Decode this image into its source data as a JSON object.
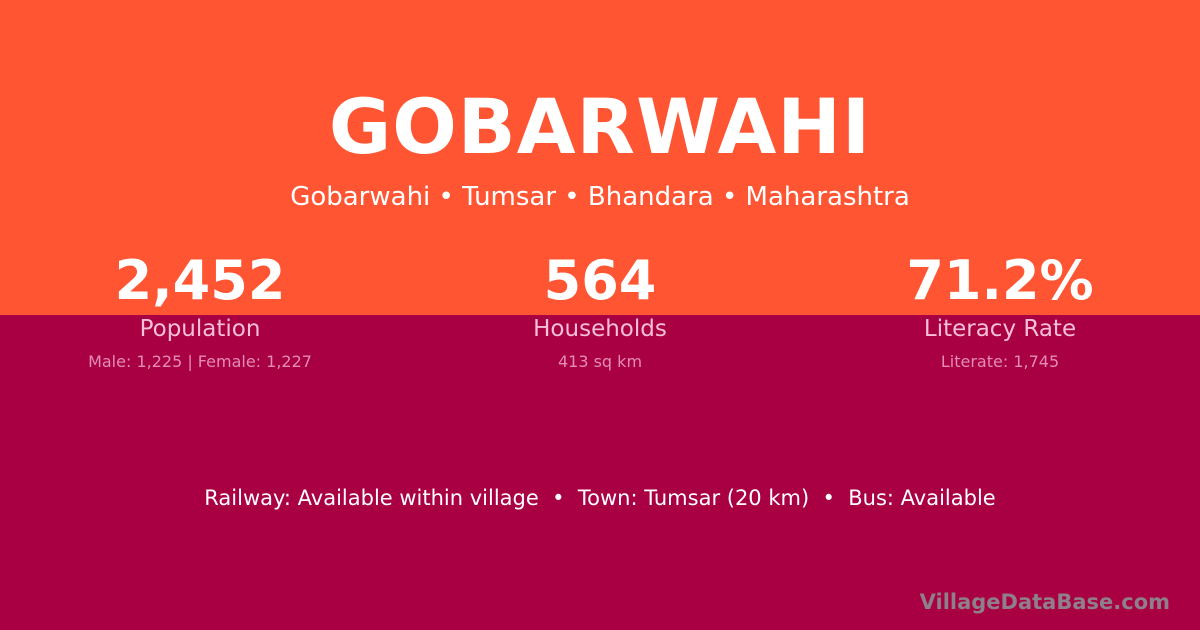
{
  "colors": {
    "top": "#ff5533",
    "bottom": "#a80042"
  },
  "title": "GOBARWAHI",
  "breadcrumb": "Gobarwahi • Tumsar • Bhandara • Maharashtra",
  "stats": [
    {
      "value": "2,452",
      "label": "Population",
      "sub": "Male: 1,225 | Female: 1,227"
    },
    {
      "value": "564",
      "label": "Households",
      "sub": "413 sq km"
    },
    {
      "value": "71.2%",
      "label": "Literacy Rate",
      "sub": "Literate: 1,745"
    }
  ],
  "info": "Railway: Available within village  •  Town: Tumsar (20 km)  •  Bus: Available",
  "watermark": "VillageDataBase.com"
}
